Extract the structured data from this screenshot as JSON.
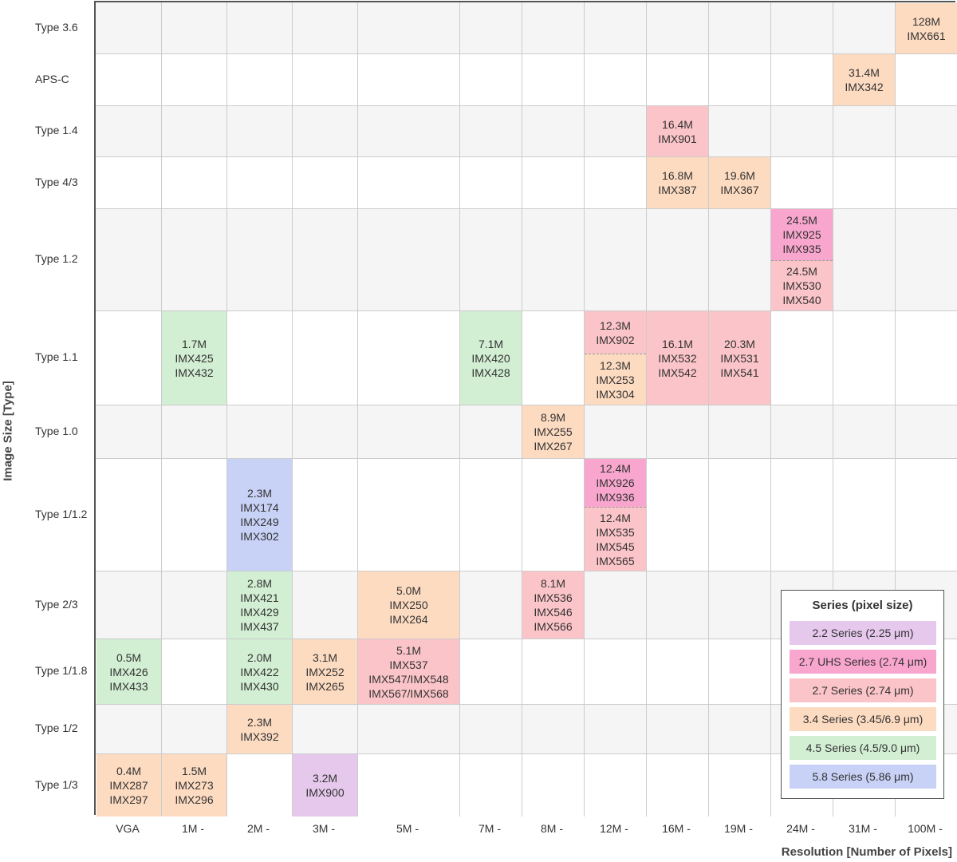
{
  "chart_data": {
    "type": "table",
    "xlabel": "Resolution [Number of Pixels]",
    "ylabel": "Image Size [Type]",
    "columns": [
      "VGA",
      "1M -",
      "2M -",
      "3M -",
      "5M -",
      "7M -",
      "8M -",
      "12M -",
      "16M -",
      "19M -",
      "24M -",
      "31M -",
      "100M -"
    ],
    "rows": [
      "Type 3.6",
      "APS-C",
      "Type 1.4",
      "Type 4/3",
      "Type 1.2",
      "Type 1.1",
      "Type 1.0",
      "Type 1/1.2",
      "Type 2/3",
      "Type 1/1.8",
      "Type 1/2",
      "Type 1/3"
    ],
    "legend": {
      "title": "Series (pixel size)",
      "items": [
        {
          "key": "s22",
          "label": "2.2 Series (2.25 μm)",
          "color": "#e5c8ec"
        },
        {
          "key": "uhs",
          "label": "2.7 UHS Series  (2.74 μm)",
          "color": "#f9a6cf"
        },
        {
          "key": "s27",
          "label": "2.7 Series (2.74 μm)",
          "color": "#fbc4c8"
        },
        {
          "key": "s34",
          "label": "3.4 Series (3.45/6.9 μm)",
          "color": "#fddbc1"
        },
        {
          "key": "s45",
          "label": "4.5 Series (4.5/9.0 μm)",
          "color": "#d2eed3"
        },
        {
          "key": "s58",
          "label": "5.8 Series (5.86 μm)",
          "color": "#c8d1f6"
        }
      ]
    },
    "cells": [
      {
        "row": 0,
        "col": 12,
        "series": "s34",
        "lines": [
          "128M",
          "IMX661"
        ]
      },
      {
        "row": 1,
        "col": 11,
        "series": "s34",
        "lines": [
          "31.4M",
          "IMX342"
        ]
      },
      {
        "row": 2,
        "col": 8,
        "series": "s27",
        "lines": [
          "16.4M",
          "IMX901"
        ]
      },
      {
        "row": 3,
        "col": 8,
        "series": "s34",
        "lines": [
          "16.8M",
          "IMX387"
        ]
      },
      {
        "row": 3,
        "col": 9,
        "series": "s34",
        "lines": [
          "19.6M",
          "IMX367"
        ]
      },
      {
        "row": 4,
        "col": 10,
        "series": "uhs",
        "part": "top",
        "lines": [
          "24.5M",
          "IMX925",
          "IMX935"
        ]
      },
      {
        "row": 4,
        "col": 10,
        "series": "s27",
        "part": "bottom",
        "lines": [
          "24.5M",
          "IMX530",
          "IMX540"
        ]
      },
      {
        "row": 5,
        "col": 1,
        "series": "s45",
        "lines": [
          "1.7M",
          "IMX425",
          "IMX432"
        ]
      },
      {
        "row": 5,
        "col": 5,
        "series": "s45",
        "lines": [
          "7.1M",
          "IMX420",
          "IMX428"
        ]
      },
      {
        "row": 5,
        "col": 7,
        "series": "s27",
        "part": "top",
        "lines": [
          "12.3M",
          "IMX902"
        ]
      },
      {
        "row": 5,
        "col": 7,
        "series": "s34",
        "part": "bottom",
        "lines": [
          "12.3M",
          "IMX253",
          "IMX304"
        ]
      },
      {
        "row": 5,
        "col": 8,
        "series": "s27",
        "lines": [
          "16.1M",
          "IMX532",
          "IMX542"
        ]
      },
      {
        "row": 5,
        "col": 9,
        "series": "s27",
        "lines": [
          "20.3M",
          "IMX531",
          "IMX541"
        ]
      },
      {
        "row": 6,
        "col": 6,
        "series": "s34",
        "lines": [
          "8.9M",
          "IMX255",
          "IMX267"
        ]
      },
      {
        "row": 7,
        "col": 2,
        "series": "s58",
        "lines": [
          "2.3M",
          "IMX174",
          "IMX249",
          "IMX302"
        ]
      },
      {
        "row": 7,
        "col": 7,
        "series": "uhs",
        "part": "top",
        "lines": [
          "12.4M",
          "IMX926",
          "IMX936"
        ]
      },
      {
        "row": 7,
        "col": 7,
        "series": "s27",
        "part": "bottom",
        "lines": [
          "12.4M",
          "IMX535",
          "IMX545",
          "IMX565"
        ]
      },
      {
        "row": 8,
        "col": 2,
        "series": "s45",
        "lines": [
          "2.8M",
          "IMX421",
          "IMX429",
          "IMX437"
        ]
      },
      {
        "row": 8,
        "col": 4,
        "series": "s34",
        "lines": [
          "5.0M",
          "IMX250",
          "IMX264"
        ]
      },
      {
        "row": 8,
        "col": 6,
        "series": "s27",
        "lines": [
          "8.1M",
          "IMX536",
          "IMX546",
          "IMX566"
        ]
      },
      {
        "row": 9,
        "col": 0,
        "series": "s45",
        "lines": [
          "0.5M",
          "IMX426",
          "IMX433"
        ]
      },
      {
        "row": 9,
        "col": 2,
        "series": "s45",
        "lines": [
          "2.0M",
          "IMX422",
          "IMX430"
        ]
      },
      {
        "row": 9,
        "col": 3,
        "series": "s34",
        "lines": [
          "3.1M",
          "IMX252",
          "IMX265"
        ]
      },
      {
        "row": 9,
        "col": 4,
        "series": "s27",
        "lines": [
          "5.1M",
          "IMX537",
          "IMX547/IMX548",
          "IMX567/IMX568"
        ]
      },
      {
        "row": 10,
        "col": 2,
        "series": "s34",
        "lines": [
          "2.3M",
          "IMX392"
        ]
      },
      {
        "row": 11,
        "col": 0,
        "series": "s34",
        "lines": [
          "0.4M",
          "IMX287",
          "IMX297"
        ]
      },
      {
        "row": 11,
        "col": 1,
        "series": "s34",
        "lines": [
          "1.5M",
          "IMX273",
          "IMX296"
        ]
      },
      {
        "row": 11,
        "col": 3,
        "series": "s22",
        "lines": [
          "3.2M",
          "IMX900"
        ]
      }
    ]
  }
}
